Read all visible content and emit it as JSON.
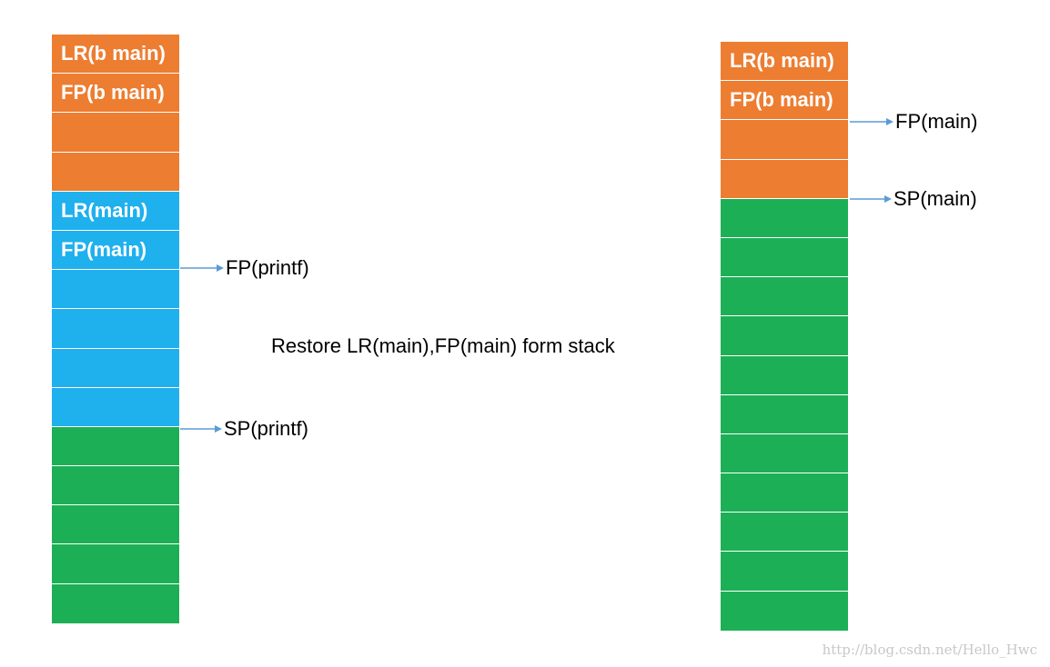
{
  "left_stack": {
    "cells": [
      {
        "label": "LR(b main)",
        "color": "orange"
      },
      {
        "label": "FP(b main)",
        "color": "orange"
      },
      {
        "label": "",
        "color": "orange"
      },
      {
        "label": "",
        "color": "orange"
      },
      {
        "label": "LR(main)",
        "color": "blue"
      },
      {
        "label": "FP(main)",
        "color": "blue"
      },
      {
        "label": "",
        "color": "blue"
      },
      {
        "label": "",
        "color": "blue"
      },
      {
        "label": "",
        "color": "blue"
      },
      {
        "label": "",
        "color": "blue"
      },
      {
        "label": "",
        "color": "green"
      },
      {
        "label": "",
        "color": "green"
      },
      {
        "label": "",
        "color": "green"
      },
      {
        "label": "",
        "color": "green"
      },
      {
        "label": "",
        "color": "green"
      }
    ],
    "pointers": [
      {
        "label": "FP(printf)"
      },
      {
        "label": "SP(printf)"
      }
    ]
  },
  "caption": "Restore LR(main),FP(main) form stack",
  "right_stack": {
    "cells": [
      {
        "label": "LR(b main)",
        "color": "orange"
      },
      {
        "label": "FP(b main)",
        "color": "orange"
      },
      {
        "label": "",
        "color": "orange"
      },
      {
        "label": "",
        "color": "orange"
      },
      {
        "label": "",
        "color": "green"
      },
      {
        "label": "",
        "color": "green"
      },
      {
        "label": "",
        "color": "green"
      },
      {
        "label": "",
        "color": "green"
      },
      {
        "label": "",
        "color": "green"
      },
      {
        "label": "",
        "color": "green"
      },
      {
        "label": "",
        "color": "green"
      },
      {
        "label": "",
        "color": "green"
      },
      {
        "label": "",
        "color": "green"
      },
      {
        "label": "",
        "color": "green"
      },
      {
        "label": "",
        "color": "green"
      }
    ],
    "pointers": [
      {
        "label": "FP(main)"
      },
      {
        "label": "SP(main)"
      }
    ]
  },
  "watermark": "http://blog.csdn.net/Hello_Hwc",
  "colors": {
    "orange": "#ED7D31",
    "blue": "#1FB0EE",
    "green": "#1DAF56",
    "arrow": "#5B9BD5"
  }
}
